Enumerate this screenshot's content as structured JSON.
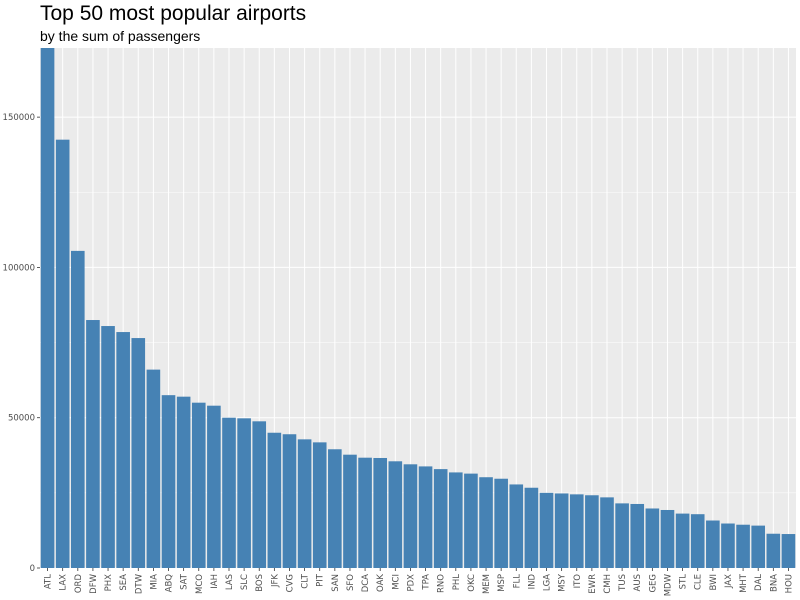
{
  "chart_data": {
    "type": "bar",
    "title": "Top 50 most popular airports",
    "subtitle": "by the sum of passengers",
    "xlabel": "",
    "ylabel": "",
    "ylim": [
      0,
      173000
    ],
    "yticks": [
      0,
      50000,
      100000,
      150000
    ],
    "grid": true,
    "colors": {
      "bar": "#4682b4",
      "panel": "#ebebeb",
      "grid": "#ffffff"
    },
    "categories": [
      "ATL",
      "LAX",
      "ORD",
      "DFW",
      "PHX",
      "SEA",
      "DTW",
      "MIA",
      "ABQ",
      "SAT",
      "MCO",
      "IAH",
      "LAS",
      "SLC",
      "BOS",
      "JFK",
      "CVG",
      "CLT",
      "PIT",
      "SAN",
      "SFO",
      "DCA",
      "OAK",
      "MCI",
      "PDX",
      "TPA",
      "RNO",
      "PHL",
      "OKC",
      "MEM",
      "MSP",
      "FLL",
      "IND",
      "LGA",
      "MSY",
      "ITO",
      "EWR",
      "CMH",
      "TUS",
      "AUS",
      "GEG",
      "MDW",
      "STL",
      "CLE",
      "BWI",
      "JAX",
      "MHT",
      "DAL",
      "BNA",
      "HOU"
    ],
    "values": [
      174000,
      142500,
      105500,
      82500,
      80500,
      78500,
      76500,
      66000,
      57500,
      57000,
      55000,
      54000,
      50000,
      49800,
      48800,
      45000,
      44500,
      42800,
      41800,
      39500,
      37700,
      36700,
      36600,
      35500,
      34500,
      33800,
      32900,
      31800,
      31400,
      30200,
      29700,
      27800,
      26700,
      25000,
      24800,
      24500,
      24200,
      23500,
      21500,
      21300,
      19800,
      19300,
      18100,
      17900,
      15800,
      14800,
      14400,
      14100,
      11400,
      11300
    ]
  }
}
